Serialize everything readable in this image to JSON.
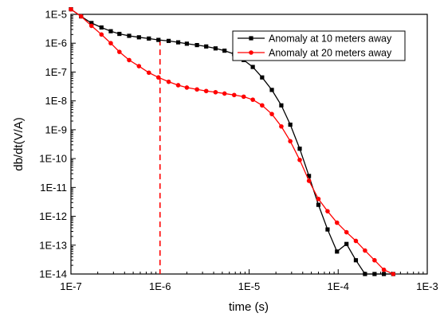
{
  "chart_data": {
    "type": "line",
    "xlabel": "time (s)",
    "ylabel": "db/dt(V/A)",
    "xscale": "log",
    "yscale": "log",
    "xlim": [
      1e-07,
      0.001
    ],
    "ylim": [
      1e-14,
      1e-05
    ],
    "x_tick_labels": [
      "1E-7",
      "1E-6",
      "1E-5",
      "1E-4",
      "1E-3"
    ],
    "y_tick_labels": [
      "1E-5",
      "1E-6",
      "1E-7",
      "1E-8",
      "1E-9",
      "1E-10",
      "1E-11",
      "1E-12",
      "1E-13",
      "1E-14"
    ],
    "legend_position": "top-right",
    "grid": false,
    "series": [
      {
        "name": "Anomaly at 10 meters away",
        "color": "#000000",
        "marker": "square",
        "x": [
          1e-07,
          1.3e-07,
          1.7e-07,
          2.2e-07,
          2.8e-07,
          3.5e-07,
          4.5e-07,
          5.8e-07,
          7.5e-07,
          9.6e-07,
          1.25e-06,
          1.6e-06,
          2e-06,
          2.6e-06,
          3.3e-06,
          4.2e-06,
          5.3e-06,
          6.8e-06,
          8.7e-06,
          1.1e-05,
          1.4e-05,
          1.8e-05,
          2.3e-05,
          2.9e-05,
          3.7e-05,
          4.7e-05,
          6e-05,
          7.6e-05,
          9.7e-05,
          0.000124,
          0.000158,
          0.0002,
          0.000256,
          0.000326,
          0.000415
        ],
        "y": [
          1.5e-05,
          8.5e-06,
          5e-06,
          3.5e-06,
          2.6e-06,
          2.1e-06,
          1.8e-06,
          1.6e-06,
          1.45e-06,
          1.3e-06,
          1.2e-06,
          1.07e-06,
          9.6e-07,
          8.6e-07,
          7.7e-07,
          6.6e-07,
          5.5e-07,
          4.2e-07,
          2.6e-07,
          1.5e-07,
          6.5e-08,
          2.4e-08,
          7e-09,
          1.5e-09,
          2.2e-10,
          2.5e-11,
          2.5e-12,
          3.5e-13,
          6e-14,
          1.1e-13,
          3e-14,
          1e-14,
          1e-14,
          1e-14,
          1e-14
        ]
      },
      {
        "name": "Anomaly at 20 meters away",
        "color": "#ff0000",
        "marker": "circle",
        "x": [
          1e-07,
          1.3e-07,
          1.7e-07,
          2.2e-07,
          2.8e-07,
          3.5e-07,
          4.5e-07,
          5.8e-07,
          7.5e-07,
          9.6e-07,
          1.25e-06,
          1.6e-06,
          2e-06,
          2.6e-06,
          3.3e-06,
          4.2e-06,
          5.3e-06,
          6.8e-06,
          8.7e-06,
          1.1e-05,
          1.4e-05,
          1.8e-05,
          2.3e-05,
          2.9e-05,
          3.7e-05,
          4.7e-05,
          6e-05,
          7.6e-05,
          9.7e-05,
          0.000124,
          0.000158,
          0.0002,
          0.000256,
          0.000326,
          0.000415
        ],
        "y": [
          1.5e-05,
          8.5e-06,
          4e-06,
          2e-06,
          1e-06,
          5e-07,
          2.6e-07,
          1.6e-07,
          9.5e-08,
          6.5e-08,
          4.6e-08,
          3.5e-08,
          2.9e-08,
          2.5e-08,
          2.2e-08,
          2e-08,
          1.8e-08,
          1.6e-08,
          1.4e-08,
          1.1e-08,
          7e-09,
          3.5e-09,
          1.3e-09,
          4e-10,
          9e-11,
          1.7e-11,
          4e-12,
          1.5e-12,
          6e-13,
          2.8e-13,
          1.4e-13,
          6.5e-14,
          3e-14,
          1.4e-14,
          1e-14
        ]
      }
    ],
    "annotations": [
      {
        "type": "vertical-dashed-line",
        "x": 1e-06,
        "color": "#ff0000"
      }
    ]
  }
}
